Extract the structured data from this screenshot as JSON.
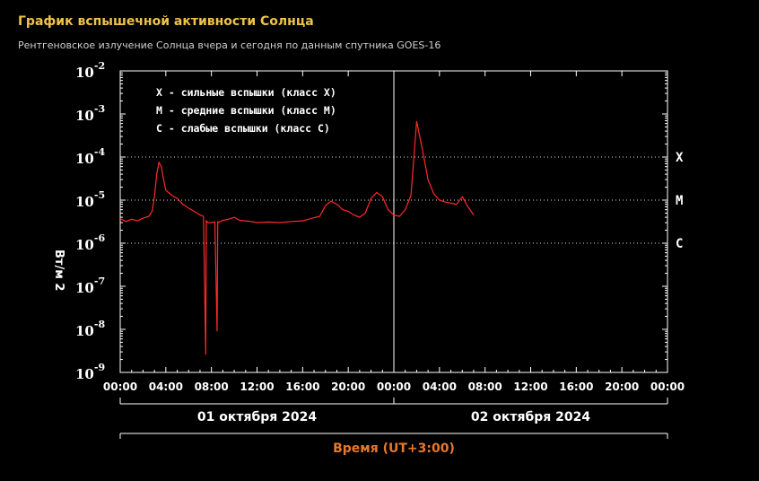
{
  "header": {
    "title": "График вспышечной активности Солнца",
    "subtitle": "Рентгеновское излучение Солнца вчера и сегодня по данным спутника GOES-16"
  },
  "colors": {
    "background": "#000000",
    "series": "#ff2a2a",
    "title": "#f0c24a",
    "xlabel": "#e8782a"
  },
  "chart_data": {
    "type": "line",
    "ylabel": "Вт/м 2",
    "xlabel": "Время (UT+3:00)",
    "yscale": "log",
    "ylim": [
      1e-09,
      0.01
    ],
    "y_ticks": [
      {
        "base": "10",
        "exp": "-2",
        "value": 0.01
      },
      {
        "base": "10",
        "exp": "-3",
        "value": 0.001
      },
      {
        "base": "10",
        "exp": "-4",
        "value": 0.0001
      },
      {
        "base": "10",
        "exp": "-5",
        "value": 1e-05
      },
      {
        "base": "10",
        "exp": "-6",
        "value": 1e-06
      },
      {
        "base": "10",
        "exp": "-7",
        "value": 1e-07
      },
      {
        "base": "10",
        "exp": "-8",
        "value": 1e-08
      },
      {
        "base": "10",
        "exp": "-9",
        "value": 1e-09
      }
    ],
    "x_ticks": [
      "00:00",
      "04:00",
      "08:00",
      "12:00",
      "16:00",
      "20:00",
      "00:00",
      "04:00",
      "08:00",
      "12:00",
      "16:00",
      "20:00",
      "00:00"
    ],
    "x_range_hours": [
      0,
      48
    ],
    "dates": [
      "01 октября 2024",
      "02 октября 2024"
    ],
    "classes": [
      {
        "label": "X",
        "threshold": 0.0001
      },
      {
        "label": "M",
        "threshold": 1e-05
      },
      {
        "label": "C",
        "threshold": 1e-06
      }
    ],
    "legend": [
      "X - сильные вспышки (класс X)",
      "M - средние вспышки (класс M)",
      "C - слабые вспышки (класс C)"
    ],
    "series": [
      {
        "x": [
          0,
          0.5,
          1,
          1.5,
          2,
          2.5,
          2.8,
          3.0,
          3.2,
          3.4,
          3.6,
          3.8,
          4.0,
          4.5,
          5.0,
          5.5,
          6.0,
          6.5,
          7.0,
          7.3,
          7.5,
          7.55,
          7.6,
          7.7,
          8.0,
          8.3,
          8.5,
          8.55,
          8.6,
          8.8,
          9.0,
          9.5,
          10.0,
          10.5,
          11.0,
          11.5,
          12.0,
          13,
          14,
          15,
          16,
          16.5,
          17,
          17.5,
          18,
          18.5,
          19,
          19.5,
          20,
          20.5,
          21,
          21.5,
          22,
          22.5,
          23,
          23.5,
          24,
          24.5,
          25,
          25.5,
          26,
          26.5,
          27,
          27.5,
          28,
          28.5,
          29,
          29.5,
          30,
          30.5,
          31
        ],
        "y": [
          3.7e-06,
          3.2e-06,
          3.6e-06,
          3.3e-06,
          3.8e-06,
          4.2e-06,
          5.5e-06,
          1.2e-05,
          4e-05,
          7.5e-05,
          6e-05,
          3e-05,
          1.7e-05,
          1.3e-05,
          1.1e-05,
          8e-06,
          6.5e-06,
          5.5e-06,
          4.5e-06,
          4.2e-06,
          2.6e-09,
          3.4e-06,
          3.2e-06,
          3e-06,
          3e-06,
          3.1e-06,
          9e-09,
          3.1e-06,
          3e-06,
          3.2e-06,
          3.4e-06,
          3.6e-06,
          4e-06,
          3.4e-06,
          3.3e-06,
          3.2e-06,
          3e-06,
          3.1e-06,
          3e-06,
          3.2e-06,
          3.3e-06,
          3.6e-06,
          3.9e-06,
          4.2e-06,
          7.5e-06,
          9.5e-06,
          8e-06,
          6e-06,
          5.5e-06,
          4.5e-06,
          4e-06,
          5e-06,
          1.1e-05,
          1.5e-05,
          1.2e-05,
          6e-06,
          4.5e-06,
          4.2e-06,
          6e-06,
          1.3e-05,
          0.00068,
          0.00015,
          3e-05,
          1.4e-05,
          1e-05,
          9e-06,
          8.5e-06,
          8e-06,
          1.2e-05,
          7e-06,
          4.5e-06
        ]
      }
    ],
    "grid": "dotted at class thresholds"
  }
}
